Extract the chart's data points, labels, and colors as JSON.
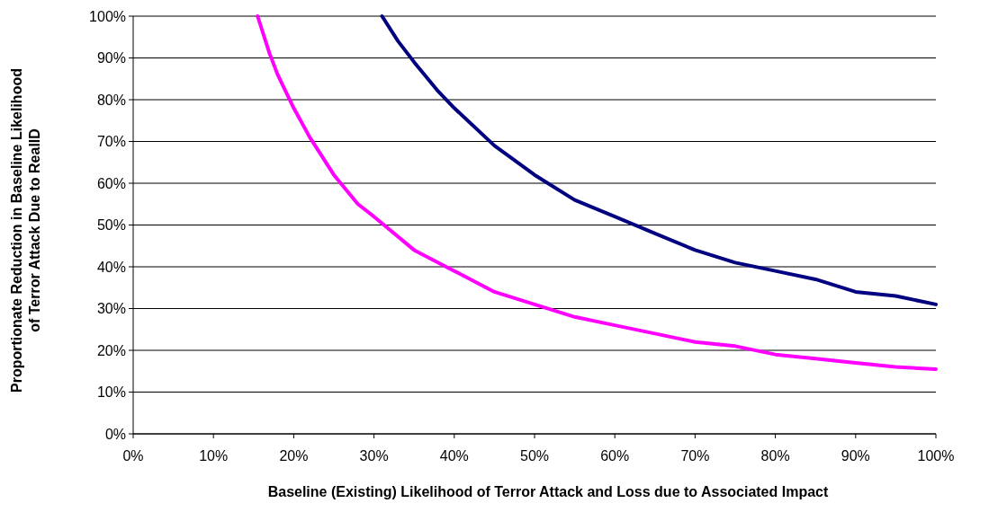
{
  "chart_data": {
    "type": "line",
    "xlabel": "Baseline (Existing) Likelihood of Terror Attack and Loss due to Associated Impact",
    "ylabel": "Proportionate Reduction in Baseline Likelihood\nof Terror Attack Due to RealID",
    "series": [
      {
        "color": "#000080",
        "x": [
          31,
          33,
          35,
          38,
          40,
          45,
          50,
          55,
          60,
          65,
          70,
          75,
          80,
          85,
          90,
          95,
          100
        ],
        "values": [
          100,
          94,
          89,
          82,
          78,
          69,
          62,
          56,
          52,
          48,
          44,
          41,
          39,
          37,
          34,
          33,
          31
        ]
      },
      {
        "color": "#ff00ff",
        "x": [
          15.5,
          17,
          18,
          20,
          22,
          25,
          28,
          30,
          35,
          40,
          45,
          50,
          55,
          60,
          65,
          70,
          75,
          80,
          85,
          90,
          95,
          100
        ],
        "values": [
          100,
          91,
          86,
          78,
          71,
          62,
          55,
          52,
          44,
          39,
          34,
          31,
          28,
          26,
          24,
          22,
          21,
          19,
          18,
          17,
          16,
          15.5
        ]
      }
    ],
    "xlim": [
      0,
      100
    ],
    "ylim": [
      0,
      100
    ],
    "xticks": [
      {
        "value": 0,
        "label": "0%"
      },
      {
        "value": 10,
        "label": "10%"
      },
      {
        "value": 20,
        "label": "20%"
      },
      {
        "value": 30,
        "label": "30%"
      },
      {
        "value": 40,
        "label": "40%"
      },
      {
        "value": 50,
        "label": "50%"
      },
      {
        "value": 60,
        "label": "60%"
      },
      {
        "value": 70,
        "label": "70%"
      },
      {
        "value": 80,
        "label": "80%"
      },
      {
        "value": 90,
        "label": "90%"
      },
      {
        "value": 100,
        "label": "100%"
      }
    ],
    "yticks": [
      {
        "value": 0,
        "label": "0%"
      },
      {
        "value": 10,
        "label": "10%"
      },
      {
        "value": 20,
        "label": "20%"
      },
      {
        "value": 30,
        "label": "30%"
      },
      {
        "value": 40,
        "label": "40%"
      },
      {
        "value": 50,
        "label": "50%"
      },
      {
        "value": 60,
        "label": "60%"
      },
      {
        "value": 70,
        "label": "70%"
      },
      {
        "value": 80,
        "label": "80%"
      },
      {
        "value": 90,
        "label": "90%"
      },
      {
        "value": 100,
        "label": "100%"
      }
    ],
    "grid": "y",
    "marker": "none",
    "line_style": "solid"
  }
}
